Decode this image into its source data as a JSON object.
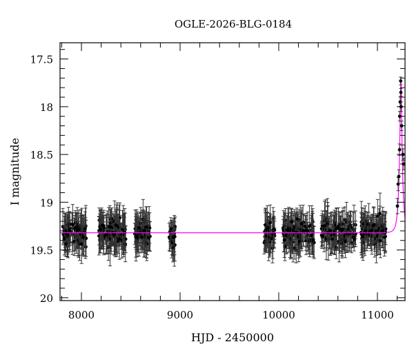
{
  "chart_data": {
    "type": "scatter",
    "title": "OGLE-2026-BLG-0184",
    "xlabel": "HJD - 2450000",
    "ylabel": "I magnitude",
    "xlim": [
      7783,
      11280
    ],
    "ylim": [
      20.03,
      17.33
    ],
    "y_inverted": true,
    "xticks": [
      8000,
      9000,
      10000,
      11000
    ],
    "xtick_labels": [
      "8000",
      "9000",
      "10000",
      "11000"
    ],
    "yticks": [
      17.5,
      18,
      18.5,
      19,
      19.5,
      20
    ],
    "ytick_labels": [
      "17.5",
      "18",
      "18.5",
      "19",
      "19.5",
      "20"
    ],
    "grid": false,
    "legend": "none",
    "colors": {
      "data": "#000000",
      "errorbar": "#333333",
      "model": "#ff00ff"
    },
    "baseline_seasons": [
      {
        "hjd_range": [
          7810,
          8050
        ],
        "points": 90,
        "mean_mag": 19.32,
        "scatter": 0.1
      },
      {
        "hjd_range": [
          8175,
          8450
        ],
        "points": 110,
        "mean_mag": 19.32,
        "scatter": 0.1
      },
      {
        "hjd_range": [
          8540,
          8700
        ],
        "points": 70,
        "mean_mag": 19.32,
        "scatter": 0.1
      },
      {
        "hjd_range": [
          8880,
          8950
        ],
        "points": 20,
        "mean_mag": 19.36,
        "scatter": 0.1
      },
      {
        "hjd_range": [
          9850,
          9960
        ],
        "points": 45,
        "mean_mag": 19.3,
        "scatter": 0.1
      },
      {
        "hjd_range": [
          10040,
          10360
        ],
        "points": 110,
        "mean_mag": 19.32,
        "scatter": 0.1
      },
      {
        "hjd_range": [
          10430,
          10780
        ],
        "points": 110,
        "mean_mag": 19.32,
        "scatter": 0.1
      },
      {
        "hjd_range": [
          10830,
          11090
        ],
        "points": 90,
        "mean_mag": 19.3,
        "scatter": 0.1
      }
    ],
    "event_points": [
      {
        "hjd": 11203,
        "mag": 19.04,
        "err": 0.08
      },
      {
        "hjd": 11210,
        "mag": 18.81,
        "err": 0.07
      },
      {
        "hjd": 11217,
        "mag": 18.73,
        "err": 0.07
      },
      {
        "hjd": 11224,
        "mag": 18.45,
        "err": 0.06
      },
      {
        "hjd": 11226,
        "mag": 18.1,
        "err": 0.05
      },
      {
        "hjd": 11231,
        "mag": 17.95,
        "err": 0.05
      },
      {
        "hjd": 11236,
        "mag": 17.73,
        "err": 0.04
      },
      {
        "hjd": 11238,
        "mag": 17.85,
        "err": 0.04
      },
      {
        "hjd": 11240,
        "mag": 18.0,
        "err": 0.05
      },
      {
        "hjd": 11245,
        "mag": 18.2,
        "err": 0.05
      },
      {
        "hjd": 11259,
        "mag": 18.5,
        "err": 0.06
      },
      {
        "hjd": 11266,
        "mag": 18.6,
        "err": 0.06
      }
    ],
    "model": {
      "name": "",
      "baseline_mag": 19.32,
      "t0": 11238,
      "u0": 0.237,
      "tE": 30
    }
  }
}
